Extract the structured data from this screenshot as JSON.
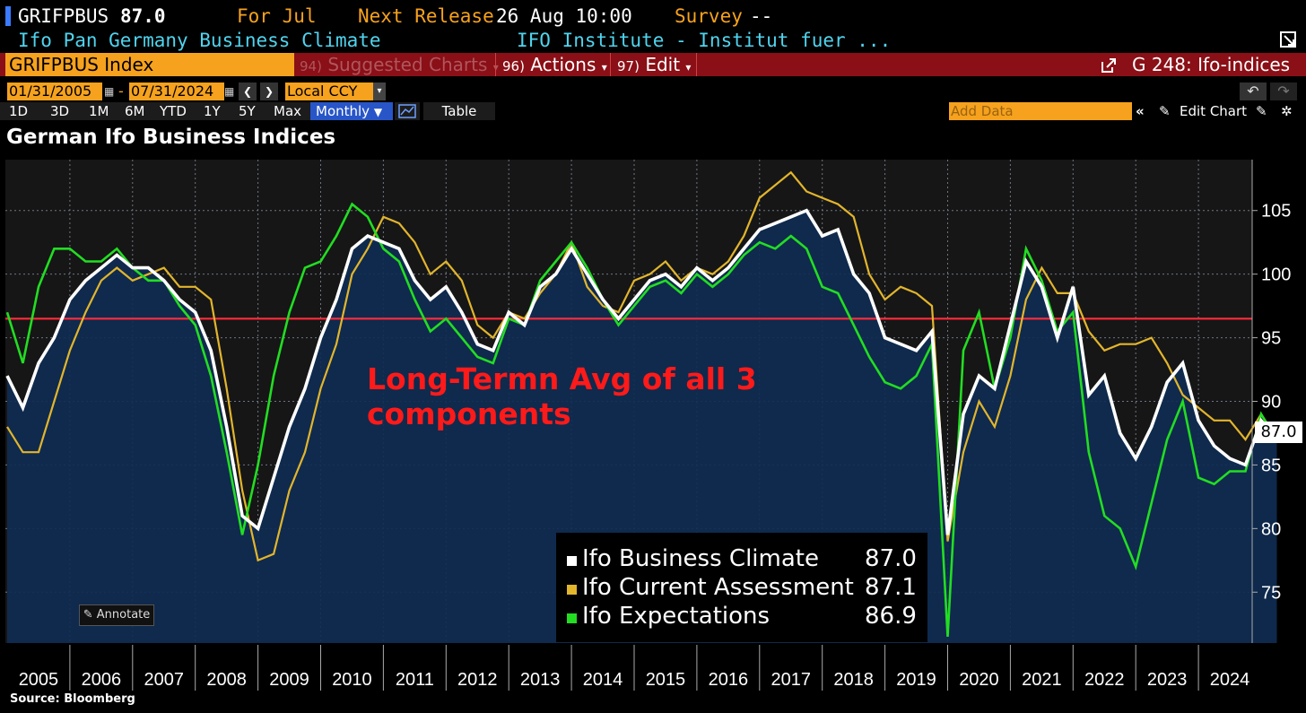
{
  "header": {
    "ticker": "GRIFPBUS",
    "last_value": "87.0",
    "period_label": "For Jul",
    "next_release_label": "Next Release",
    "next_release": "26 Aug 10:00",
    "survey_label": "Survey",
    "survey_value": "--",
    "description": "Ifo Pan Germany Business Climate",
    "source_name": "IFO Institute - Institut fuer ..."
  },
  "toolbar": {
    "security": "GRIFPBUS Index",
    "suggested_num": "94)",
    "suggested": "Suggested Charts",
    "actions_num": "96)",
    "actions": "Actions",
    "edit_num": "97)",
    "edit": "Edit",
    "chart_id": "G 248: Ifo-indices"
  },
  "controls": {
    "start_date": "01/31/2005",
    "dash": "-",
    "end_date": "07/31/2024",
    "currency": "Local CCY",
    "periods": [
      "1D",
      "3D",
      "1M",
      "6M",
      "YTD",
      "1Y",
      "5Y",
      "Max"
    ],
    "frequency": "Monthly",
    "table": "Table",
    "add_data_placeholder": "Add Data",
    "edit_chart": "Edit Chart"
  },
  "chart_title": "German Ifo Business Indices",
  "annotate_label": "Annotate",
  "source": "Source: Bloomberg",
  "annotation_text": "Long-Termn Avg of all 3 components",
  "last_badge": "87.0",
  "legend": [
    {
      "name": "Ifo Business Climate",
      "value": "87.0",
      "color": "#ffffff"
    },
    {
      "name": "Ifo Current Assessment",
      "value": "87.1",
      "color": "#e2b52c"
    },
    {
      "name": "Ifo Expectations",
      "value": "86.9",
      "color": "#22dd22"
    }
  ],
  "colors": {
    "toolbar_bg": "#8a0f16",
    "accent_orange": "#f6a21e",
    "avg_line": "#ff2a3a",
    "area_fill": "#0f2d52",
    "grid": "#6e7583"
  },
  "chart_data": {
    "type": "line",
    "title": "German Ifo Business Indices",
    "xlabel": "",
    "ylabel": "",
    "x_start": "2005-01",
    "x_step": "quarterly",
    "year_ticks": [
      "2005",
      "2006",
      "2007",
      "2008",
      "2009",
      "2010",
      "2011",
      "2012",
      "2013",
      "2014",
      "2015",
      "2016",
      "2017",
      "2018",
      "2019",
      "2020",
      "2021",
      "2022",
      "2023",
      "2024"
    ],
    "y_ticks": [
      75,
      80,
      85,
      90,
      95,
      100,
      105
    ],
    "ylim": [
      71,
      109
    ],
    "grid": true,
    "legend_position": "bottom-center",
    "reference_line": {
      "value": 96.5,
      "label": "Long-Termn Avg of all 3 components"
    },
    "series": [
      {
        "name": "Ifo Business Climate",
        "color": "#ffffff",
        "values": [
          92.0,
          89.5,
          93.0,
          95.0,
          98.0,
          99.5,
          100.5,
          101.5,
          100.5,
          100.5,
          99.5,
          98.0,
          97.0,
          94.0,
          88.0,
          81.0,
          80.0,
          84.0,
          88.0,
          91.0,
          95.0,
          98.0,
          102.0,
          103.0,
          102.5,
          102.0,
          99.5,
          98.0,
          99.0,
          97.0,
          94.5,
          94.0,
          97.0,
          96.0,
          99.0,
          100.0,
          102.0,
          100.0,
          98.0,
          96.5,
          98.0,
          99.5,
          100.0,
          99.0,
          100.5,
          99.5,
          100.5,
          102.0,
          103.5,
          104.0,
          104.5,
          105.0,
          103.0,
          103.5,
          100.0,
          98.5,
          95.0,
          94.5,
          94.0,
          95.5,
          79.5,
          89.0,
          92.0,
          91.0,
          96.0,
          101.0,
          99.0,
          95.0,
          99.0,
          90.5,
          92.0,
          87.5,
          85.5,
          88.0,
          91.5,
          93.0,
          88.5,
          86.5,
          85.5,
          85.0,
          88.5,
          87.0
        ]
      },
      {
        "name": "Ifo Current Assessment",
        "color": "#e2b52c",
        "values": [
          88.0,
          86.0,
          86.0,
          90.0,
          94.0,
          97.0,
          99.5,
          100.5,
          99.5,
          100.0,
          100.5,
          99.0,
          99.0,
          98.0,
          91.0,
          83.0,
          77.5,
          78.0,
          83.0,
          86.0,
          91.0,
          94.5,
          100.0,
          102.0,
          104.5,
          104.0,
          102.5,
          100.0,
          101.0,
          99.5,
          96.0,
          95.0,
          97.0,
          96.5,
          98.5,
          100.0,
          102.5,
          99.0,
          97.5,
          97.0,
          99.5,
          100.0,
          101.0,
          99.5,
          100.5,
          100.0,
          101.0,
          103.0,
          106.0,
          107.0,
          108.0,
          106.5,
          106.0,
          105.5,
          104.5,
          100.0,
          98.0,
          99.0,
          98.5,
          97.5,
          79.0,
          86.0,
          90.0,
          88.0,
          92.0,
          98.0,
          100.5,
          98.5,
          98.5,
          95.5,
          94.0,
          94.5,
          94.5,
          95.0,
          93.0,
          90.5,
          89.5,
          88.5,
          88.5,
          87.0,
          89.0,
          87.1
        ]
      },
      {
        "name": "Ifo Expectations",
        "color": "#22dd22",
        "values": [
          97.0,
          93.0,
          99.0,
          102.0,
          102.0,
          101.0,
          101.0,
          102.0,
          100.5,
          99.5,
          99.5,
          97.5,
          96.0,
          92.0,
          86.0,
          79.5,
          85.0,
          92.0,
          97.0,
          100.5,
          101.0,
          103.0,
          105.5,
          104.5,
          102.0,
          101.0,
          98.0,
          95.5,
          96.5,
          95.0,
          93.5,
          93.0,
          96.5,
          96.0,
          99.5,
          101.0,
          102.5,
          100.5,
          98.0,
          96.0,
          97.5,
          99.0,
          99.5,
          98.5,
          100.0,
          99.0,
          100.0,
          101.5,
          102.5,
          102.0,
          103.0,
          102.0,
          99.0,
          98.5,
          96.0,
          93.5,
          91.5,
          91.0,
          92.0,
          94.5,
          71.5,
          94.0,
          97.0,
          91.0,
          95.0,
          102.0,
          99.5,
          95.5,
          97.0,
          86.0,
          81.0,
          80.0,
          77.0,
          82.0,
          87.0,
          90.0,
          84.0,
          83.5,
          84.5,
          84.5,
          89.0,
          86.9
        ]
      }
    ]
  }
}
